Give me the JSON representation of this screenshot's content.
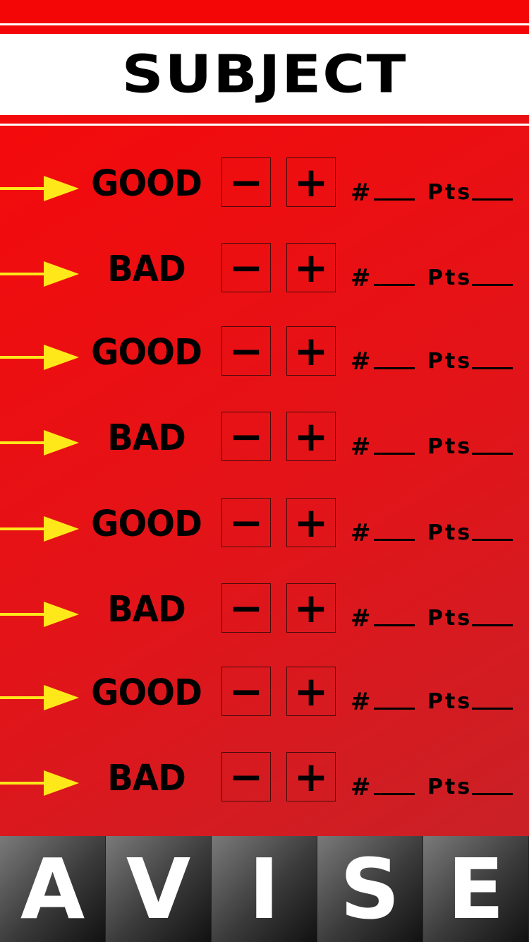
{
  "header": {
    "title": "SUBJECT"
  },
  "rows": [
    {
      "label": "GOOD",
      "minus": "−",
      "plus": "+",
      "count_label": "#",
      "pts_label": "Pts"
    },
    {
      "label": "BAD",
      "minus": "−",
      "plus": "+",
      "count_label": "#",
      "pts_label": "Pts"
    },
    {
      "label": "GOOD",
      "minus": "−",
      "plus": "+",
      "count_label": "#",
      "pts_label": "Pts"
    },
    {
      "label": "BAD",
      "minus": "−",
      "plus": "+",
      "count_label": "#",
      "pts_label": "Pts"
    },
    {
      "label": "GOOD",
      "minus": "−",
      "plus": "+",
      "count_label": "#",
      "pts_label": "Pts"
    },
    {
      "label": "BAD",
      "minus": "−",
      "plus": "+",
      "count_label": "#",
      "pts_label": "Pts"
    },
    {
      "label": "GOOD",
      "minus": "−",
      "plus": "+",
      "count_label": "#",
      "pts_label": "Pts"
    },
    {
      "label": "BAD",
      "minus": "−",
      "plus": "+",
      "count_label": "#",
      "pts_label": "Pts"
    }
  ],
  "footer": {
    "letters": [
      "A",
      "V",
      "I",
      "S",
      "E"
    ]
  },
  "colors": {
    "accent_red": "#e50b10",
    "arrow_yellow": "#ffe81a",
    "tile_dark": "#3a3a3a"
  },
  "icons": {
    "row_arrow": "right-arrow-icon"
  }
}
